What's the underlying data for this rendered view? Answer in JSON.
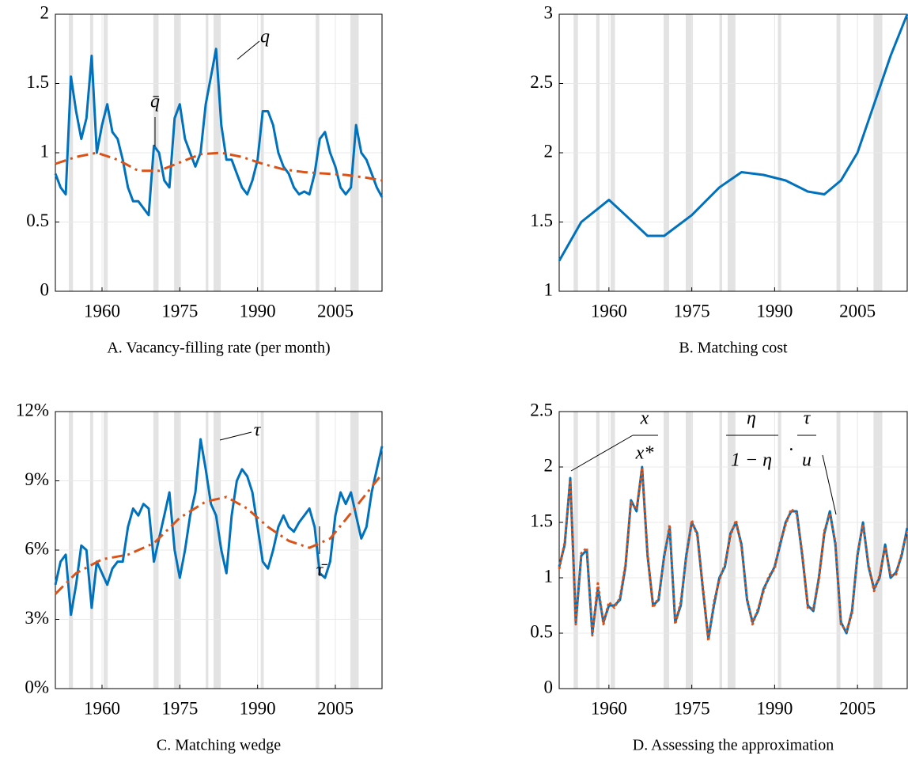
{
  "chart_data": [
    {
      "type": "line",
      "title": "A.  Vacancy-filling rate (per month)",
      "x": [
        1951,
        1952,
        1953,
        1954,
        1955,
        1956,
        1957,
        1958,
        1959,
        1960,
        1961,
        1962,
        1963,
        1964,
        1965,
        1966,
        1967,
        1968,
        1969,
        1970,
        1971,
        1972,
        1973,
        1974,
        1975,
        1976,
        1977,
        1978,
        1979,
        1980,
        1981,
        1982,
        1983,
        1984,
        1985,
        1986,
        1987,
        1988,
        1989,
        1990,
        1991,
        1992,
        1993,
        1994,
        1995,
        1996,
        1997,
        1998,
        1999,
        2000,
        2001,
        2002,
        2003,
        2004,
        2005,
        2006,
        2007,
        2008,
        2009,
        2010,
        2011,
        2012,
        2013,
        2014
      ],
      "series": [
        {
          "name": "q",
          "color": "#0072bd",
          "style": "solid",
          "values": [
            0.85,
            0.75,
            0.7,
            1.55,
            1.3,
            1.1,
            1.25,
            1.7,
            1.0,
            1.2,
            1.35,
            1.15,
            1.1,
            0.95,
            0.75,
            0.65,
            0.65,
            0.6,
            0.55,
            1.05,
            1.0,
            0.8,
            0.75,
            1.25,
            1.35,
            1.1,
            1.0,
            0.9,
            1.0,
            1.35,
            1.55,
            1.75,
            1.2,
            0.95,
            0.95,
            0.85,
            0.75,
            0.7,
            0.8,
            0.95,
            1.3,
            1.3,
            1.2,
            1.0,
            0.9,
            0.85,
            0.75,
            0.7,
            0.72,
            0.7,
            0.85,
            1.1,
            1.15,
            1.0,
            0.9,
            0.75,
            0.7,
            0.75,
            1.2,
            1.0,
            0.95,
            0.85,
            0.75,
            0.68
          ]
        },
        {
          "name": "q̄",
          "color": "#d95319",
          "style": "dash-dot",
          "x": [
            1951,
            1955,
            1959,
            1963,
            1967,
            1971,
            1975,
            1979,
            1983,
            1987,
            1991,
            1995,
            1999,
            2003,
            2007,
            2011,
            2014
          ],
          "values": [
            0.92,
            0.97,
            1.0,
            0.95,
            0.87,
            0.87,
            0.93,
            0.99,
            1.0,
            0.97,
            0.92,
            0.88,
            0.86,
            0.85,
            0.84,
            0.82,
            0.8
          ]
        }
      ],
      "annotations": [
        "q",
        "q̄"
      ],
      "xlim": [
        1951,
        2014
      ],
      "xticks": [
        1960,
        1975,
        1990,
        2005
      ],
      "ylim": [
        0,
        2
      ],
      "yticks": [
        0,
        0.5,
        1,
        1.5,
        2
      ],
      "grid": true,
      "shading": [
        [
          1953.6,
          1954.4
        ],
        [
          1957.7,
          1958.3
        ],
        [
          1960.3,
          1961.1
        ],
        [
          1969.9,
          1970.9
        ],
        [
          1973.9,
          1975.2
        ],
        [
          1980.0,
          1980.5
        ],
        [
          1981.5,
          1982.9
        ],
        [
          1990.6,
          1991.2
        ],
        [
          2001.2,
          2001.9
        ],
        [
          2007.9,
          2009.5
        ]
      ]
    },
    {
      "type": "line",
      "title": "B.  Matching cost",
      "x": [
        1951,
        1955,
        1960,
        1963,
        1967,
        1970,
        1975,
        1980,
        1984,
        1988,
        1992,
        1996,
        1999,
        2002,
        2005,
        2008,
        2011,
        2014
      ],
      "series": [
        {
          "name": "Matching cost",
          "color": "#0072bd",
          "style": "solid",
          "values": [
            1.22,
            1.5,
            1.66,
            1.55,
            1.4,
            1.4,
            1.55,
            1.75,
            1.86,
            1.84,
            1.8,
            1.72,
            1.7,
            1.8,
            2.0,
            2.35,
            2.7,
            3.0
          ]
        }
      ],
      "xlim": [
        1951,
        2014
      ],
      "xticks": [
        1960,
        1975,
        1990,
        2005
      ],
      "ylim": [
        1,
        3
      ],
      "yticks": [
        1,
        1.5,
        2,
        2.5,
        3
      ],
      "grid": true,
      "shading": [
        [
          1953.6,
          1954.4
        ],
        [
          1957.7,
          1958.3
        ],
        [
          1960.3,
          1961.1
        ],
        [
          1969.9,
          1970.9
        ],
        [
          1973.9,
          1975.2
        ],
        [
          1980.0,
          1980.5
        ],
        [
          1981.5,
          1982.9
        ],
        [
          1990.6,
          1991.2
        ],
        [
          2001.2,
          2001.9
        ],
        [
          2007.9,
          2009.5
        ]
      ]
    },
    {
      "type": "line",
      "title": "C.  Matching wedge",
      "x": [
        1951,
        1952,
        1953,
        1954,
        1955,
        1956,
        1957,
        1958,
        1959,
        1960,
        1961,
        1962,
        1963,
        1964,
        1965,
        1966,
        1967,
        1968,
        1969,
        1970,
        1971,
        1972,
        1973,
        1974,
        1975,
        1976,
        1977,
        1978,
        1979,
        1980,
        1981,
        1982,
        1983,
        1984,
        1985,
        1986,
        1987,
        1988,
        1989,
        1990,
        1991,
        1992,
        1993,
        1994,
        1995,
        1996,
        1997,
        1998,
        1999,
        2000,
        2001,
        2002,
        2003,
        2004,
        2005,
        2006,
        2007,
        2008,
        2009,
        2010,
        2011,
        2012,
        2013,
        2014
      ],
      "series": [
        {
          "name": "τ",
          "color": "#0072bd",
          "style": "solid",
          "values": [
            4.5,
            5.5,
            5.8,
            3.2,
            4.5,
            6.2,
            6.0,
            3.5,
            5.5,
            5.0,
            4.5,
            5.2,
            5.5,
            5.5,
            7.0,
            7.8,
            7.5,
            8.0,
            7.8,
            5.5,
            6.5,
            7.5,
            8.5,
            6.0,
            4.8,
            6.0,
            7.5,
            8.5,
            10.8,
            9.5,
            8.0,
            7.5,
            6.0,
            5.0,
            7.5,
            9.0,
            9.5,
            9.2,
            8.5,
            7.0,
            5.5,
            5.2,
            6.0,
            7.0,
            7.5,
            7.0,
            6.8,
            7.2,
            7.5,
            7.8,
            7.0,
            5.0,
            4.8,
            5.5,
            7.5,
            8.5,
            8.0,
            8.5,
            7.5,
            6.5,
            7.0,
            8.5,
            9.5,
            10.5
          ]
        },
        {
          "name": "τ̄",
          "color": "#d95319",
          "style": "dash-dot",
          "x": [
            1951,
            1955,
            1960,
            1965,
            1970,
            1975,
            1980,
            1984,
            1988,
            1992,
            1996,
            2000,
            2004,
            2008,
            2014
          ],
          "values": [
            4.1,
            5.0,
            5.6,
            5.8,
            6.3,
            7.4,
            8.1,
            8.3,
            7.8,
            7.0,
            6.4,
            6.1,
            6.5,
            7.6,
            9.3
          ]
        }
      ],
      "annotations": [
        "τ",
        "τ̄"
      ],
      "xlim": [
        1951,
        2014
      ],
      "xticks": [
        1960,
        1975,
        1990,
        2005
      ],
      "ylim": [
        0,
        12
      ],
      "yticks": [
        {
          "value": 0,
          "label": "0%"
        },
        {
          "value": 3,
          "label": "3%"
        },
        {
          "value": 6,
          "label": "6%"
        },
        {
          "value": 9,
          "label": "9%"
        },
        {
          "value": 12,
          "label": "12%"
        }
      ],
      "grid": true,
      "shading": [
        [
          1953.6,
          1954.4
        ],
        [
          1957.7,
          1958.3
        ],
        [
          1960.3,
          1961.1
        ],
        [
          1969.9,
          1970.9
        ],
        [
          1973.9,
          1975.2
        ],
        [
          1980.0,
          1980.5
        ],
        [
          1981.5,
          1982.9
        ],
        [
          1990.6,
          1991.2
        ],
        [
          2001.2,
          2001.9
        ],
        [
          2007.9,
          2009.5
        ]
      ]
    },
    {
      "type": "line",
      "title": "D.  Assessing the approximation",
      "x": [
        1951,
        1952,
        1953,
        1954,
        1955,
        1956,
        1957,
        1958,
        1959,
        1960,
        1961,
        1962,
        1963,
        1964,
        1965,
        1966,
        1967,
        1968,
        1969,
        1970,
        1971,
        1972,
        1973,
        1974,
        1975,
        1976,
        1977,
        1978,
        1979,
        1980,
        1981,
        1982,
        1983,
        1984,
        1985,
        1986,
        1987,
        1988,
        1989,
        1990,
        1991,
        1992,
        1993,
        1994,
        1995,
        1996,
        1997,
        1998,
        1999,
        2000,
        2001,
        2002,
        2003,
        2004,
        2005,
        2006,
        2007,
        2008,
        2009,
        2010,
        2011,
        2012,
        2013,
        2014
      ],
      "series": [
        {
          "name": "x/x*",
          "color": "#0072bd",
          "style": "solid",
          "values": [
            1.1,
            1.3,
            1.9,
            0.6,
            1.2,
            1.25,
            0.5,
            0.9,
            0.6,
            0.75,
            0.75,
            0.8,
            1.1,
            1.7,
            1.6,
            2.0,
            1.2,
            0.75,
            0.8,
            1.2,
            1.45,
            0.6,
            0.75,
            1.2,
            1.5,
            1.4,
            0.9,
            0.45,
            0.75,
            1.0,
            1.1,
            1.4,
            1.5,
            1.3,
            0.8,
            0.6,
            0.7,
            0.9,
            1.0,
            1.1,
            1.3,
            1.5,
            1.6,
            1.6,
            1.2,
            0.75,
            0.7,
            1.0,
            1.4,
            1.6,
            1.3,
            0.6,
            0.5,
            0.7,
            1.2,
            1.5,
            1.1,
            0.9,
            1.0,
            1.3,
            1.0,
            1.05,
            1.2,
            1.45
          ]
        },
        {
          "name": "approximation",
          "color": "#d95319",
          "style": "dotted",
          "values": [
            1.08,
            1.32,
            1.88,
            0.58,
            1.22,
            1.27,
            0.48,
            0.95,
            0.58,
            0.78,
            0.73,
            0.82,
            1.12,
            1.68,
            1.62,
            1.98,
            1.22,
            0.73,
            0.82,
            1.18,
            1.48,
            0.58,
            0.78,
            1.18,
            1.52,
            1.38,
            0.92,
            0.43,
            0.78,
            0.98,
            1.12,
            1.38,
            1.52,
            1.28,
            0.82,
            0.58,
            0.72,
            0.88,
            1.02,
            1.08,
            1.32,
            1.48,
            1.62,
            1.58,
            1.22,
            0.73,
            0.72,
            0.98,
            1.42,
            1.58,
            1.32,
            0.58,
            0.52,
            0.68,
            1.22,
            1.48,
            1.12,
            0.88,
            1.02,
            1.28,
            1.02,
            1.03,
            1.22,
            1.43
          ]
        }
      ],
      "annotations": [
        "x",
        "x*",
        "η",
        "1 − η",
        "·",
        "τ",
        "u"
      ],
      "xlim": [
        1951,
        2014
      ],
      "xticks": [
        1960,
        1975,
        1990,
        2005
      ],
      "ylim": [
        0,
        2.5
      ],
      "yticks": [
        0,
        0.5,
        1,
        1.5,
        2,
        2.5
      ],
      "grid": true,
      "shading": [
        [
          1953.6,
          1954.4
        ],
        [
          1957.7,
          1958.3
        ],
        [
          1960.3,
          1961.1
        ],
        [
          1969.9,
          1970.9
        ],
        [
          1973.9,
          1975.2
        ],
        [
          1980.0,
          1980.5
        ],
        [
          1981.5,
          1982.9
        ],
        [
          1990.6,
          1991.2
        ],
        [
          2001.2,
          2001.9
        ],
        [
          2007.9,
          2009.5
        ]
      ]
    }
  ]
}
